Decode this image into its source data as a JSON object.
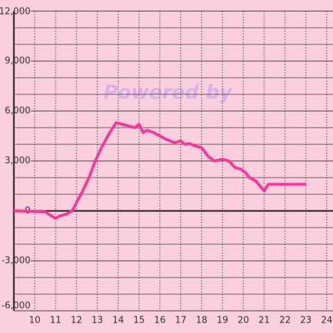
{
  "chart_data": {
    "type": "line",
    "watermark": "Powered by",
    "x": [
      9.0,
      10.5,
      10.8,
      11.0,
      11.2,
      11.5,
      11.8,
      12.0,
      12.3,
      12.6,
      12.9,
      13.2,
      13.5,
      13.9,
      14.2,
      14.5,
      14.8,
      15.0,
      15.2,
      15.4,
      15.7,
      16.0,
      16.3,
      16.7,
      17.0,
      17.2,
      17.4,
      17.7,
      18.0,
      18.3,
      18.6,
      19.0,
      19.3,
      19.6,
      19.9,
      20.1,
      20.3,
      20.6,
      21.0,
      21.2,
      21.5,
      23.0
    ],
    "series": [
      {
        "color": "#ff3399",
        "values": [
          0,
          -50,
          -300,
          -450,
          -300,
          -200,
          0,
          500,
          1200,
          2000,
          3000,
          3800,
          4500,
          5300,
          5200,
          5100,
          5000,
          5200,
          4700,
          4850,
          4700,
          4500,
          4300,
          4100,
          4200,
          4000,
          4050,
          3900,
          3800,
          3300,
          3000,
          3100,
          3000,
          2600,
          2500,
          2300,
          2000,
          1800,
          1200,
          1600,
          1600,
          1600
        ]
      }
    ],
    "xlim": [
      9,
      24.3
    ],
    "xticks": [
      10,
      11,
      12,
      13,
      14,
      15,
      16,
      17,
      18,
      19,
      20,
      21,
      22,
      23,
      24
    ],
    "ylim": [
      -6000,
      12000
    ],
    "yticks": [
      {
        "value": -6000,
        "label": "-6,000"
      },
      {
        "value": -3000,
        "label": "-3,000"
      },
      0,
      {
        "value": 3000,
        "label": "3,000"
      },
      {
        "value": 6000,
        "label": "6,000"
      },
      {
        "value": 9000,
        "label": "9,000"
      },
      {
        "value": 12000,
        "label": "12,000"
      }
    ],
    "minor_yticks": [
      -5000,
      -4000,
      -2000,
      -1000,
      1000,
      2000,
      4000,
      5000,
      7000,
      8000,
      10000,
      11000
    ],
    "grid": true
  }
}
